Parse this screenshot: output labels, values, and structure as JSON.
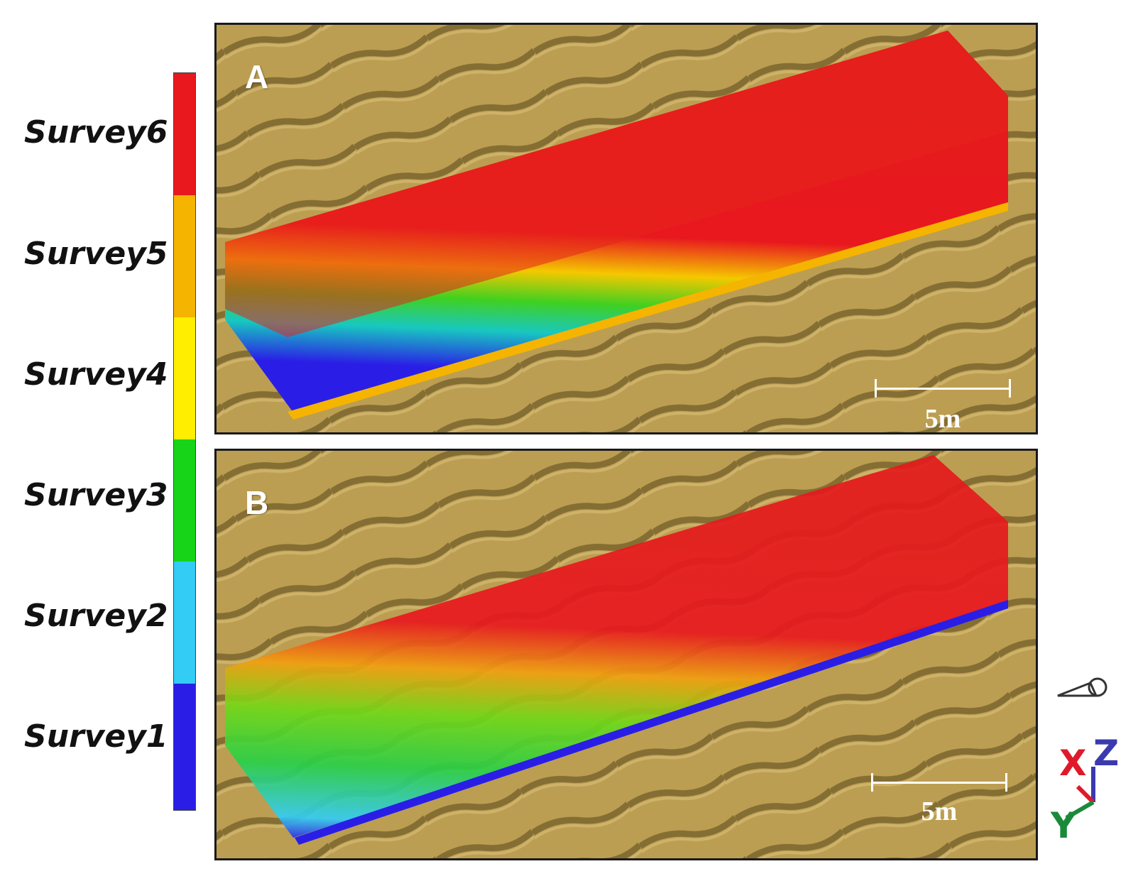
{
  "legend": {
    "items": [
      {
        "label": "Survey6",
        "color": "#e8181e"
      },
      {
        "label": "Survey5",
        "color": "#f5b400"
      },
      {
        "label": "Survey4",
        "color": "#ffee00"
      },
      {
        "label": "Survey3",
        "color": "#18d418"
      },
      {
        "label": "Survey2",
        "color": "#33ccf5"
      },
      {
        "label": "Survey1",
        "color": "#2a1ee6"
      }
    ]
  },
  "panels": {
    "a": {
      "letter": "A",
      "scale": "5m"
    },
    "b": {
      "letter": "B",
      "scale": "5m"
    }
  },
  "axes": {
    "x": "X",
    "y": "Y",
    "z": "Z"
  },
  "colors": {
    "terrain": "#b89a4e",
    "terrain_shadow": "#7a6428"
  }
}
